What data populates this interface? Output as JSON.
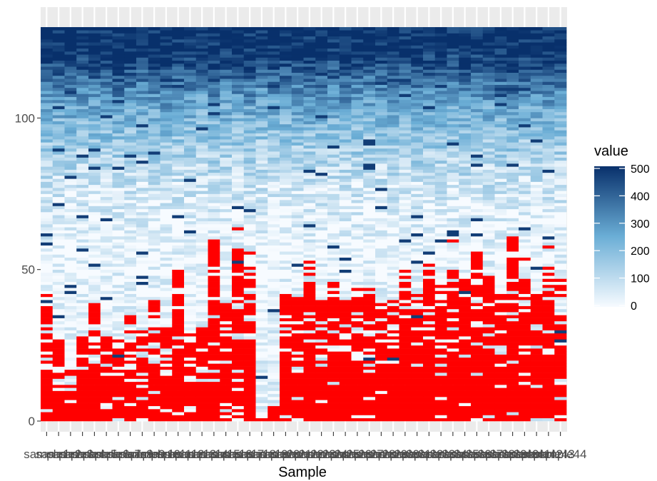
{
  "chart_data": {
    "type": "heatmap",
    "title": "",
    "xlabel": "Sample",
    "ylabel": "",
    "x_tick_label_prefix": "sample",
    "samples": 44,
    "rows": 130,
    "ylim": [
      0,
      130
    ],
    "y_ticks": [
      0,
      50,
      100
    ],
    "zero_cell_color": "#ff0000",
    "colorscale": {
      "name": "value",
      "low_color": "#f7fbff",
      "high_color": "#08306b",
      "limits": [
        0,
        500
      ],
      "ticks": [
        0,
        100,
        200,
        300,
        400,
        500
      ]
    },
    "panel_background": "#ebebeb",
    "gridline_color": "#ffffff",
    "column_summary": {
      "note_units": "row index where zero (red) cells end, per sample, 1..44",
      "zero_top": [
        38,
        27,
        13,
        28,
        40,
        30,
        24,
        34,
        30,
        40,
        31,
        50,
        29,
        31,
        60,
        39,
        58,
        56,
        0,
        6,
        42,
        42,
        53,
        41,
        46,
        40,
        41,
        44,
        39,
        42,
        46,
        42,
        50,
        48,
        55,
        48,
        56,
        48,
        42,
        61,
        47,
        42,
        51,
        45
      ],
      "high_start": [
        118,
        118,
        117,
        119,
        118,
        117,
        116,
        118,
        119,
        118,
        116,
        118,
        118,
        120,
        117,
        119,
        119,
        117,
        120,
        118,
        118,
        118,
        117,
        118,
        119,
        116,
        118,
        119,
        119,
        118,
        118,
        117,
        119,
        118,
        120,
        117,
        119,
        118,
        118,
        116,
        118,
        117,
        116,
        118
      ]
    }
  },
  "x_tick_labels": [
    "sample1",
    "sample2",
    "sample3",
    "sample4",
    "sample5",
    "sample6",
    "sample7",
    "sample8",
    "sample9",
    "sample10",
    "sample11",
    "sample12",
    "sample13",
    "sample14",
    "sample15",
    "sample16",
    "sample17",
    "sample18",
    "sample19",
    "sample20",
    "sample21",
    "sample22",
    "sample23",
    "sample24",
    "sample25",
    "sample26",
    "sample27",
    "sample28",
    "sample29",
    "sample30",
    "sample31",
    "sample32",
    "sample33",
    "sample34",
    "sample35",
    "sample36",
    "sample37",
    "sample38",
    "sample39",
    "sample40",
    "sample41",
    "sample42",
    "sample43",
    "sample44"
  ],
  "y_tick_labels": [
    "0",
    "50",
    "100"
  ],
  "legend_tick_labels": [
    "0",
    "100",
    "200",
    "300",
    "400",
    "500"
  ]
}
